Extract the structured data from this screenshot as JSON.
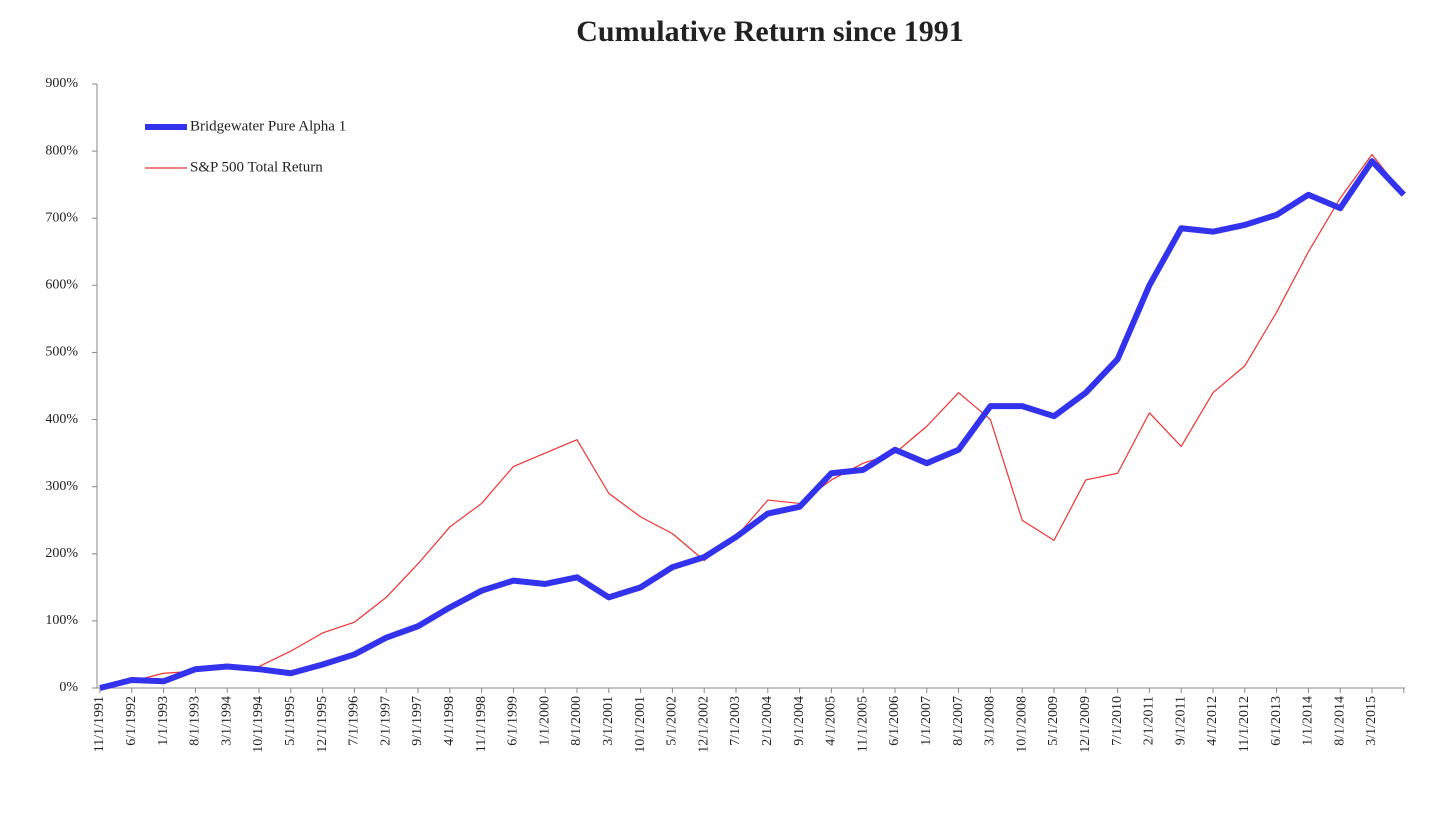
{
  "chart_data": {
    "type": "line",
    "title": "Cumulative Return since 1991",
    "categories": [
      "11/1/1991",
      "6/1/1992",
      "1/1/1993",
      "8/1/1993",
      "3/1/1994",
      "10/1/1994",
      "5/1/1995",
      "12/1/1995",
      "7/1/1996",
      "2/1/1997",
      "9/1/1997",
      "4/1/1998",
      "11/1/1998",
      "6/1/1999",
      "1/1/2000",
      "8/1/2000",
      "3/1/2001",
      "10/1/2001",
      "5/1/2002",
      "12/1/2002",
      "7/1/2003",
      "2/1/2004",
      "9/1/2004",
      "4/1/2005",
      "11/1/2005",
      "6/1/2006",
      "1/1/2007",
      "8/1/2007",
      "3/1/2008",
      "10/1/2008",
      "5/1/2009",
      "12/1/2009",
      "7/1/2010",
      "2/1/2011",
      "9/1/2011",
      "4/1/2012",
      "11/1/2012",
      "6/1/2013",
      "1/1/2014",
      "8/1/2014",
      "3/1/2015",
      null
    ],
    "series": [
      {
        "name": "Bridgewater Pure Alpha 1",
        "color": "#3333ee",
        "width": 6,
        "values": [
          0,
          12,
          10,
          28,
          32,
          28,
          22,
          35,
          50,
          75,
          92,
          120,
          145,
          160,
          155,
          165,
          135,
          150,
          180,
          195,
          225,
          260,
          270,
          320,
          325,
          355,
          335,
          355,
          420,
          420,
          405,
          440,
          490,
          600,
          685,
          680,
          690,
          705,
          735,
          715,
          785,
          735
        ]
      },
      {
        "name": "S&P 500 Total Return",
        "color": "#ee3333",
        "width": 1.2,
        "values": [
          0,
          10,
          22,
          25,
          30,
          32,
          55,
          82,
          98,
          135,
          185,
          240,
          275,
          330,
          350,
          370,
          290,
          255,
          230,
          190,
          225,
          280,
          275,
          310,
          335,
          350,
          390,
          440,
          400,
          250,
          220,
          310,
          320,
          410,
          360,
          440,
          480,
          560,
          650,
          730,
          795,
          735
        ]
      }
    ],
    "ylim": [
      0,
      900
    ],
    "yticks": [
      {
        "value": 0,
        "label": "0%"
      },
      {
        "value": 100,
        "label": "100%"
      },
      {
        "value": 200,
        "label": "200%"
      },
      {
        "value": 300,
        "label": "300%"
      },
      {
        "value": 400,
        "label": "400%"
      },
      {
        "value": 500,
        "label": "500%"
      },
      {
        "value": 600,
        "label": "600%"
      },
      {
        "value": 700,
        "label": "700%"
      },
      {
        "value": 800,
        "label": "800%"
      },
      {
        "value": 900,
        "label": "900%"
      }
    ],
    "grid": false,
    "legend": "top-left"
  }
}
